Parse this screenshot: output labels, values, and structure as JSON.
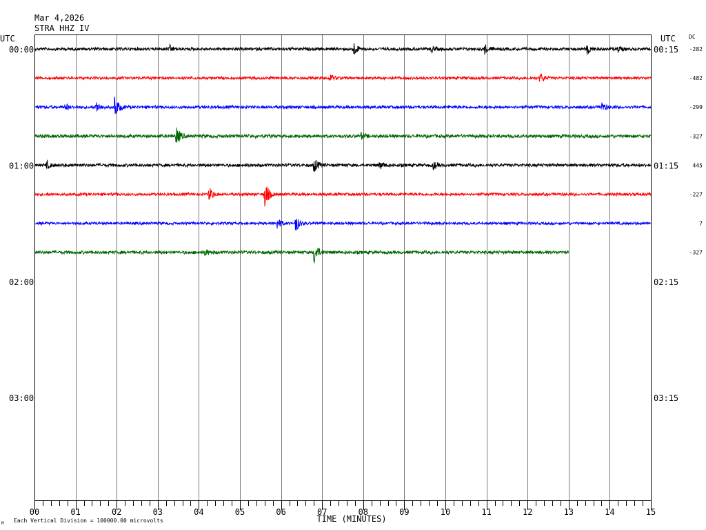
{
  "header": {
    "date": "Mar 4,2026",
    "station": "STRA HHZ IV",
    "utc_left": "UTC",
    "utc_right": "UTC",
    "dc_label": "DC"
  },
  "footer": {
    "scale_note": "Each Vertical Division = 100000.00 microvolts",
    "corner_mark": "M"
  },
  "chart_data": {
    "type": "line",
    "title": "",
    "xlabel": "TIME (MINUTES)",
    "ylabel": "",
    "xlim": [
      0,
      15
    ],
    "x_ticks": [
      "00",
      "01",
      "02",
      "03",
      "04",
      "05",
      "06",
      "07",
      "08",
      "09",
      "10",
      "11",
      "12",
      "13",
      "14",
      "15"
    ],
    "left_time_labels": [
      "00:00",
      "01:00",
      "02:00",
      "03:00"
    ],
    "right_time_labels": [
      "00:15",
      "01:15",
      "02:15",
      "03:15"
    ],
    "grid": true,
    "trace_colors": [
      "#000000",
      "#ff0000",
      "#0000ff",
      "#006400"
    ],
    "traces": [
      {
        "row": 0,
        "dc": "-282",
        "color": "#000000",
        "end_minute": 15,
        "noise": 2.5,
        "events": [
          {
            "t": 3.3,
            "amp": 5
          },
          {
            "t": 7.75,
            "amp": 12
          },
          {
            "t": 9.65,
            "amp": 5
          },
          {
            "t": 10.95,
            "amp": 7
          },
          {
            "t": 13.45,
            "amp": 8
          },
          {
            "t": 14.2,
            "amp": 4
          }
        ]
      },
      {
        "row": 1,
        "dc": "-482",
        "color": "#ff0000",
        "end_minute": 15,
        "noise": 2.3,
        "events": [
          {
            "t": 7.2,
            "amp": 5
          },
          {
            "t": 12.3,
            "amp": 8
          }
        ]
      },
      {
        "row": 2,
        "dc": "-299",
        "color": "#0000ff",
        "end_minute": 15,
        "noise": 2.5,
        "events": [
          {
            "t": 0.75,
            "amp": 5
          },
          {
            "t": 1.5,
            "amp": 9
          },
          {
            "t": 1.95,
            "amp": 18
          },
          {
            "t": 13.8,
            "amp": 7
          }
        ]
      },
      {
        "row": 3,
        "dc": "-327",
        "color": "#006400",
        "end_minute": 15,
        "noise": 2.8,
        "events": [
          {
            "t": 3.45,
            "amp": 14
          },
          {
            "t": 7.95,
            "amp": 4
          }
        ]
      },
      {
        "row": 4,
        "dc": "445",
        "color": "#000000",
        "end_minute": 15,
        "noise": 2.6,
        "events": [
          {
            "t": 0.3,
            "amp": 5
          },
          {
            "t": 6.8,
            "amp": 11
          },
          {
            "t": 8.4,
            "amp": 6
          },
          {
            "t": 9.7,
            "amp": 6
          }
        ]
      },
      {
        "row": 5,
        "dc": "-227",
        "color": "#ff0000",
        "end_minute": 15,
        "noise": 2.4,
        "events": [
          {
            "t": 4.25,
            "amp": 11
          },
          {
            "t": 5.6,
            "amp": 22
          }
        ]
      },
      {
        "row": 6,
        "dc": "7",
        "color": "#0000ff",
        "end_minute": 15,
        "noise": 2.2,
        "events": [
          {
            "t": 5.9,
            "amp": 9
          },
          {
            "t": 6.35,
            "amp": 14
          }
        ]
      },
      {
        "row": 7,
        "dc": "-327",
        "color": "#006400",
        "end_minute": 13,
        "noise": 2.6,
        "events": [
          {
            "t": 4.15,
            "amp": 5
          },
          {
            "t": 6.8,
            "amp": 18
          }
        ]
      }
    ]
  }
}
